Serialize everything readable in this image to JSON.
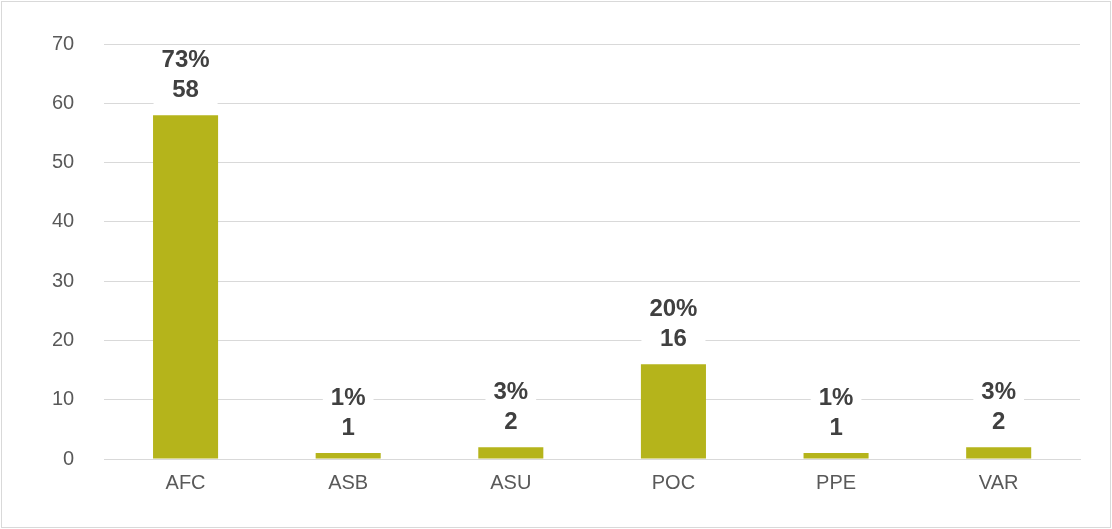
{
  "chart_data": {
    "type": "bar",
    "categories": [
      "AFC",
      "ASB",
      "ASU",
      "POC",
      "PPE",
      "VAR"
    ],
    "values": [
      58,
      1,
      2,
      16,
      1,
      2
    ],
    "value_labels": [
      "73%\n58",
      "1%\n1",
      "3%\n2",
      "20%\n16",
      "1%\n1",
      "3%\n2"
    ],
    "color": "#b5b41b",
    "ylim": [
      0,
      70
    ],
    "yticks": [
      0,
      10,
      20,
      30,
      40,
      50,
      60,
      70
    ],
    "grid": "y"
  }
}
